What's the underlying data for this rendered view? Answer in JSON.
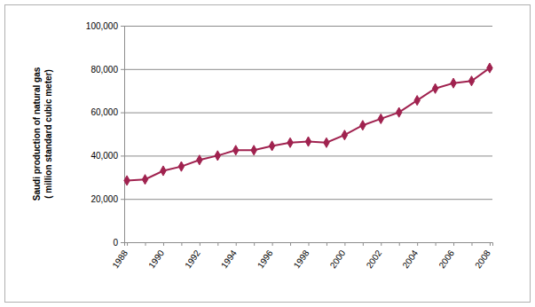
{
  "chart_data": {
    "type": "line",
    "y_label": [
      "Saudi production of natural gas",
      "( million standard cubic meter)"
    ],
    "categories": [
      "1988",
      null,
      "1990",
      null,
      "1992",
      null,
      "1994",
      null,
      "1996",
      null,
      "1998",
      null,
      "2000",
      null,
      "2002",
      null,
      "2004",
      null,
      "2006",
      null,
      "2008"
    ],
    "values": [
      28500,
      29000,
      33000,
      35000,
      38000,
      40000,
      42500,
      42500,
      44500,
      46000,
      46500,
      46000,
      49500,
      54000,
      57000,
      60000,
      65500,
      71000,
      73500,
      74500,
      80500
    ],
    "color": "#a0224f",
    "marker": "diamond",
    "ylim": [
      0,
      100000
    ],
    "yticks": [
      0,
      {
        "value": 20000,
        "label": "20,000"
      },
      {
        "value": 40000,
        "label": "40,000"
      },
      {
        "value": 60000,
        "label": "60,000"
      },
      {
        "value": 80000,
        "label": "80,000"
      },
      {
        "value": 100000,
        "label": "100,000"
      }
    ],
    "grid": true
  }
}
